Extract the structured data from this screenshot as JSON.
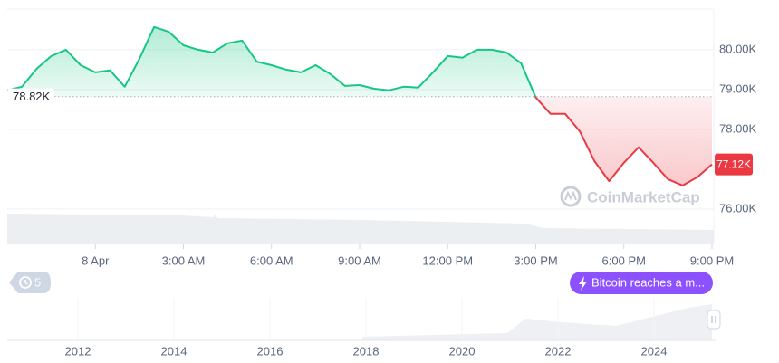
{
  "chart_data": {
    "type": "line",
    "x": [
      -3,
      -2.5,
      -2,
      -1.5,
      -1,
      -0.5,
      0,
      0.5,
      1,
      1.5,
      2,
      2.5,
      3,
      3.5,
      4,
      4.5,
      5,
      5.5,
      6,
      6.5,
      7,
      7.5,
      8,
      8.5,
      9,
      9.5,
      10,
      10.5,
      11,
      11.5,
      12,
      12.5,
      13,
      13.5,
      14,
      14.5,
      15,
      15.5,
      16,
      16.5,
      17,
      17.5,
      18,
      18.5,
      19,
      19.5,
      20,
      20.5,
      21
    ],
    "values": [
      78.98,
      79.07,
      79.52,
      79.84,
      80.0,
      79.61,
      79.43,
      79.48,
      79.07,
      79.77,
      80.57,
      80.45,
      80.11,
      80.0,
      79.93,
      80.16,
      80.23,
      79.7,
      79.61,
      79.5,
      79.43,
      79.61,
      79.39,
      79.09,
      79.11,
      79.02,
      78.98,
      79.07,
      79.05,
      79.43,
      79.84,
      79.8,
      80.0,
      80.0,
      79.93,
      79.66,
      78.8,
      78.39,
      78.39,
      77.95,
      77.2,
      76.7,
      77.16,
      77.55,
      77.16,
      76.75,
      76.59,
      76.8,
      77.12
    ],
    "colors": {
      "up": "#16c784",
      "down": "#ea3943"
    },
    "xlim": [
      -3,
      21
    ],
    "ylim": [
      75.11,
      81.02
    ],
    "xticks": [
      {
        "value": 0,
        "label": "8 Apr"
      },
      {
        "value": 3,
        "label": "3:00 AM"
      },
      {
        "value": 6,
        "label": "6:00 AM"
      },
      {
        "value": 9,
        "label": "9:00 AM"
      },
      {
        "value": 12,
        "label": "12:00 PM"
      },
      {
        "value": 15,
        "label": "3:00 PM"
      },
      {
        "value": 18,
        "label": "6:00 PM"
      },
      {
        "value": 21,
        "label": "9:00 PM"
      }
    ],
    "yticks": [
      {
        "value": 80,
        "label": "80.00K"
      },
      {
        "value": 79,
        "label": "79.00K"
      },
      {
        "value": 78,
        "label": "78.00K"
      },
      {
        "value": 76,
        "label": "76.00K"
      }
    ],
    "grid": true,
    "baseline": {
      "value": 78.82,
      "label": "78.82K"
    },
    "last_price": {
      "value": 77.12,
      "label": "77.12K"
    }
  },
  "navigator": {
    "years": [
      "2012",
      "2014",
      "2016",
      "2018",
      "2020",
      "2022",
      "2024"
    ]
  },
  "badge": "5",
  "event_button": "Bitcoin reaches a m...",
  "watermark": "CoinMarketCap"
}
